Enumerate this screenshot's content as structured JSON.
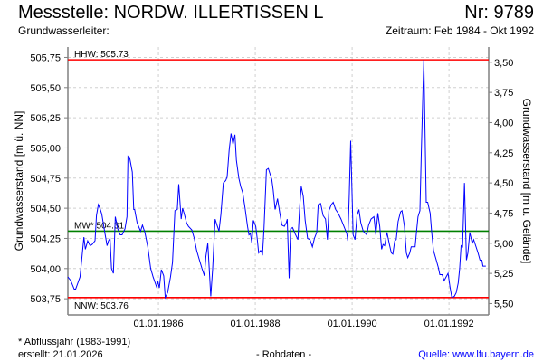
{
  "header": {
    "title": "Messstelle: NORDW. ILLERTISSEN L",
    "number": "Nr: 9789",
    "aquifer": "Grundwasserleiter:",
    "period": "Zeitraum: Feb 1984 - Okt 1992"
  },
  "footer": {
    "note": "* Abflussjahr (1983-1991)",
    "created": "erstellt:  21.01.2026",
    "raw": "- Rohdaten -",
    "source": "Quelle: www.lfu.bayern.de"
  },
  "colors": {
    "series": "#0000ff",
    "extreme": "#ff0000",
    "mean": "#008000",
    "grid": "#d0d0d0",
    "axis": "#808080"
  },
  "chart_data": {
    "type": "line",
    "ylabel": "Grundwasserstand [m ü. NN]",
    "ylabel_right": "Grundwasserstand [m u. Gelände]",
    "xlim": [
      1984.13,
      1992.82
    ],
    "ylim": [
      503.616,
      505.836
    ],
    "ground_level": 509.21,
    "grid": true,
    "x_ticks": [
      {
        "value": 1986,
        "label": "01.01.1986"
      },
      {
        "value": 1988,
        "label": "01.01.1988"
      },
      {
        "value": 1990,
        "label": "01.01.1990"
      },
      {
        "value": 1992,
        "label": "01.01.1992"
      }
    ],
    "y_ticks": [
      {
        "value": 503.75,
        "label": "503,75"
      },
      {
        "value": 504.0,
        "label": "504,00"
      },
      {
        "value": 504.25,
        "label": "504,25"
      },
      {
        "value": 504.5,
        "label": "504,50"
      },
      {
        "value": 504.75,
        "label": "504,75"
      },
      {
        "value": 505.0,
        "label": "505,00"
      },
      {
        "value": 505.25,
        "label": "505,25"
      },
      {
        "value": 505.5,
        "label": "505,50"
      },
      {
        "value": 505.75,
        "label": "505,75"
      }
    ],
    "y_ticks_right": [
      {
        "value": 3.5,
        "label": "3,50"
      },
      {
        "value": 3.75,
        "label": "3,75"
      },
      {
        "value": 4.0,
        "label": "4,00"
      },
      {
        "value": 4.25,
        "label": "4,25"
      },
      {
        "value": 4.5,
        "label": "4,50"
      },
      {
        "value": 4.75,
        "label": "4,75"
      },
      {
        "value": 5.0,
        "label": "5,00"
      },
      {
        "value": 5.25,
        "label": "5,25"
      },
      {
        "value": 5.5,
        "label": "5,50"
      }
    ],
    "reference_lines": [
      {
        "name": "HHW",
        "value": 505.73,
        "label": "HHW: 505.73",
        "color": "#ff0000"
      },
      {
        "name": "MW",
        "value": 504.31,
        "label": "MW* 504.31",
        "color": "#008000"
      },
      {
        "name": "NNW",
        "value": 503.76,
        "label": "NNW: 503.76",
        "color": "#ff0000"
      }
    ],
    "series": [
      {
        "name": "Grundwasserstand",
        "x": [
          1984.13,
          1984.19,
          1984.26,
          1984.29,
          1984.38,
          1984.41,
          1984.46,
          1984.49,
          1984.54,
          1984.59,
          1984.63,
          1984.69,
          1984.72,
          1984.76,
          1984.8,
          1984.83,
          1984.88,
          1984.94,
          1984.97,
          1985.0,
          1985.03,
          1985.07,
          1985.11,
          1985.13,
          1985.16,
          1985.21,
          1985.25,
          1985.31,
          1985.35,
          1985.37,
          1985.41,
          1985.46,
          1985.49,
          1985.51,
          1985.56,
          1985.63,
          1985.67,
          1985.72,
          1985.78,
          1985.84,
          1985.89,
          1985.96,
          1985.99,
          1986.02,
          1986.06,
          1986.11,
          1986.14,
          1986.19,
          1986.25,
          1986.29,
          1986.34,
          1986.39,
          1986.42,
          1986.47,
          1986.5,
          1986.53,
          1986.58,
          1986.62,
          1986.69,
          1986.74,
          1986.79,
          1986.84,
          1986.9,
          1986.95,
          1986.98,
          1987.02,
          1987.05,
          1987.08,
          1987.12,
          1987.17,
          1987.21,
          1987.25,
          1987.29,
          1987.34,
          1987.39,
          1987.42,
          1987.46,
          1987.5,
          1987.54,
          1987.58,
          1987.61,
          1987.66,
          1987.7,
          1987.74,
          1987.79,
          1987.84,
          1987.87,
          1987.9,
          1987.93,
          1987.96,
          1988.01,
          1988.04,
          1988.07,
          1988.11,
          1988.15,
          1988.18,
          1988.23,
          1988.27,
          1988.34,
          1988.37,
          1988.41,
          1988.46,
          1988.51,
          1988.55,
          1988.6,
          1988.64,
          1988.66,
          1988.7,
          1988.73,
          1988.77,
          1988.82,
          1988.88,
          1988.92,
          1988.95,
          1988.99,
          1989.03,
          1989.08,
          1989.13,
          1989.18,
          1989.22,
          1989.27,
          1989.3,
          1989.35,
          1989.4,
          1989.45,
          1989.49,
          1989.52,
          1989.57,
          1989.61,
          1989.66,
          1989.71,
          1989.77,
          1989.83,
          1989.89,
          1989.91,
          1989.94,
          1989.97,
          1990.02,
          1990.06,
          1990.1,
          1990.14,
          1990.18,
          1990.23,
          1990.3,
          1990.34,
          1990.39,
          1990.45,
          1990.49,
          1990.53,
          1990.57,
          1990.61,
          1990.64,
          1990.67,
          1990.72,
          1990.77,
          1990.81,
          1990.84,
          1990.88,
          1990.91,
          1990.95,
          1991.0,
          1991.03,
          1991.08,
          1991.12,
          1991.15,
          1991.19,
          1991.22,
          1991.26,
          1991.3,
          1991.33,
          1991.36,
          1991.4,
          1991.43,
          1991.48,
          1991.53,
          1991.56,
          1991.61,
          1991.64,
          1991.68,
          1991.73,
          1991.78,
          1991.81,
          1991.86,
          1991.9,
          1991.94,
          1991.98,
          1992.02,
          1992.06,
          1992.11,
          1992.15,
          1992.19,
          1992.22,
          1992.25,
          1992.28,
          1992.32,
          1992.36,
          1992.39,
          1992.43,
          1992.48,
          1992.51,
          1992.55,
          1992.6,
          1992.64,
          1992.68,
          1992.7,
          1992.76
        ],
        "y": [
          503.93,
          503.9,
          503.83,
          503.83,
          503.93,
          504.05,
          504.26,
          504.16,
          504.23,
          504.19,
          504.2,
          504.23,
          504.44,
          504.53,
          504.49,
          504.45,
          504.33,
          504.19,
          504.23,
          504.25,
          504.0,
          503.96,
          504.43,
          504.39,
          504.33,
          504.28,
          504.28,
          504.33,
          504.43,
          504.93,
          504.91,
          504.8,
          504.49,
          504.49,
          504.38,
          504.31,
          504.36,
          504.3,
          504.18,
          504.0,
          503.93,
          503.85,
          503.89,
          503.84,
          503.99,
          503.94,
          503.76,
          503.8,
          503.93,
          504.05,
          504.48,
          504.49,
          504.7,
          504.41,
          504.5,
          504.46,
          504.38,
          504.35,
          504.32,
          504.25,
          504.15,
          504.08,
          504.0,
          503.94,
          504.1,
          504.21,
          504.0,
          503.77,
          504.0,
          504.41,
          504.36,
          504.31,
          504.45,
          504.71,
          504.73,
          504.76,
          504.98,
          505.12,
          505.03,
          505.11,
          504.9,
          504.75,
          504.68,
          504.63,
          504.5,
          504.35,
          504.28,
          504.29,
          504.21,
          504.4,
          504.35,
          504.25,
          504.13,
          504.15,
          504.12,
          504.33,
          504.82,
          504.83,
          504.74,
          504.65,
          504.49,
          504.58,
          504.45,
          504.36,
          504.35,
          504.38,
          504.41,
          503.92,
          504.33,
          504.34,
          504.29,
          504.24,
          504.53,
          504.68,
          504.6,
          504.4,
          504.25,
          504.24,
          504.18,
          504.25,
          504.3,
          504.53,
          504.54,
          504.44,
          504.41,
          504.24,
          504.48,
          504.53,
          504.55,
          504.49,
          504.46,
          504.41,
          504.35,
          504.29,
          504.23,
          504.6,
          505.06,
          504.28,
          504.24,
          504.44,
          504.49,
          504.38,
          504.31,
          504.28,
          504.36,
          504.41,
          504.43,
          504.28,
          504.46,
          504.35,
          504.16,
          504.2,
          504.19,
          504.3,
          504.2,
          504.13,
          504.12,
          504.23,
          504.24,
          504.39,
          504.47,
          504.48,
          504.35,
          504.13,
          504.09,
          504.13,
          504.18,
          504.18,
          504.18,
          504.31,
          504.43,
          504.48,
          504.98,
          505.73,
          504.55,
          504.55,
          504.46,
          504.31,
          504.15,
          504.08,
          504.01,
          503.95,
          503.95,
          503.9,
          503.93,
          503.96,
          503.85,
          503.76,
          503.77,
          503.8,
          503.88,
          504.0,
          504.19,
          504.18,
          504.71,
          504.07,
          504.13,
          504.3,
          504.21,
          504.24,
          504.19,
          504.13,
          504.07,
          504.07,
          504.02,
          504.02
        ]
      }
    ]
  }
}
